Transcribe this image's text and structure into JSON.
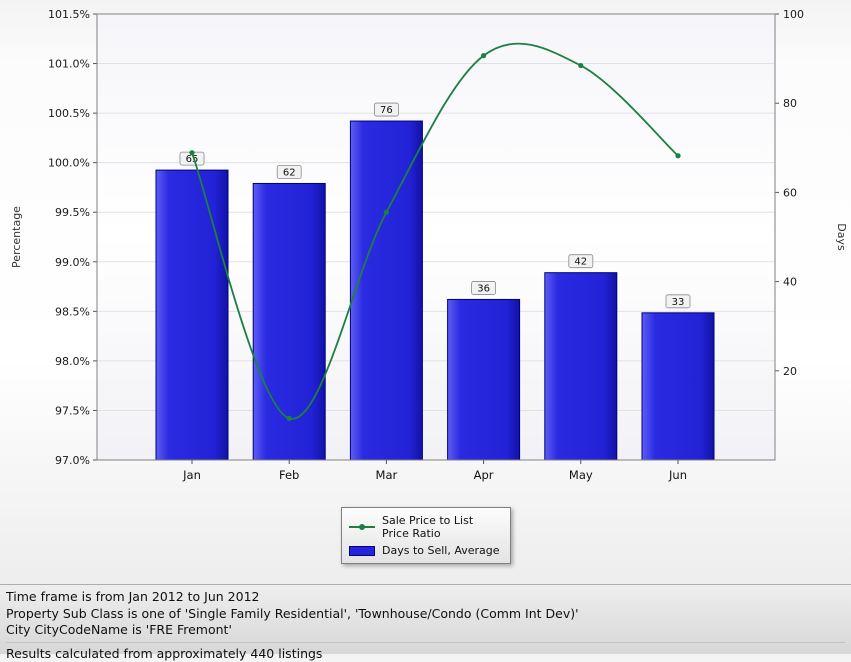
{
  "chart_data": {
    "type": "bar",
    "subtype": "bar-and-line-combo",
    "categories": [
      "Jan",
      "Feb",
      "Mar",
      "Apr",
      "May",
      "Jun"
    ],
    "series": [
      {
        "name": "Sale Price to List Price Ratio",
        "type": "line",
        "axis": "left",
        "unit": "%",
        "values": [
          100.1,
          97.42,
          99.5,
          101.08,
          100.98,
          100.07
        ],
        "color": "#1c8040"
      },
      {
        "name": "Days to Sell, Average",
        "type": "bar",
        "axis": "right",
        "unit": "days",
        "values": [
          65,
          62,
          76,
          36,
          42,
          33
        ],
        "color": "#2424db",
        "border": "#000080"
      }
    ],
    "bar_labels": [
      "65",
      "62",
      "76",
      "36",
      "42",
      "33"
    ],
    "left_axis": {
      "title": "Percentage",
      "min": 97.0,
      "max": 101.5,
      "step": 0.5,
      "format": "percent"
    },
    "right_axis": {
      "title": "Days",
      "min": 0,
      "max": 100,
      "step": 20
    },
    "grid": "horizontal",
    "legend_position": "bottom-center"
  },
  "legend": {
    "items": [
      {
        "label": "Sale Price to List Price Ratio",
        "type": "line"
      },
      {
        "label": "Days to Sell, Average",
        "type": "bar"
      }
    ]
  },
  "footer": {
    "lines": [
      "Time frame is from Jan 2012 to Jun 2012",
      "Property Sub Class is one of 'Single Family Residential', 'Townhouse/Condo (Comm Int Dev)'",
      "City CityCodeName is 'FRE Fremont'",
      "Results calculated from approximately 440 listings"
    ]
  }
}
